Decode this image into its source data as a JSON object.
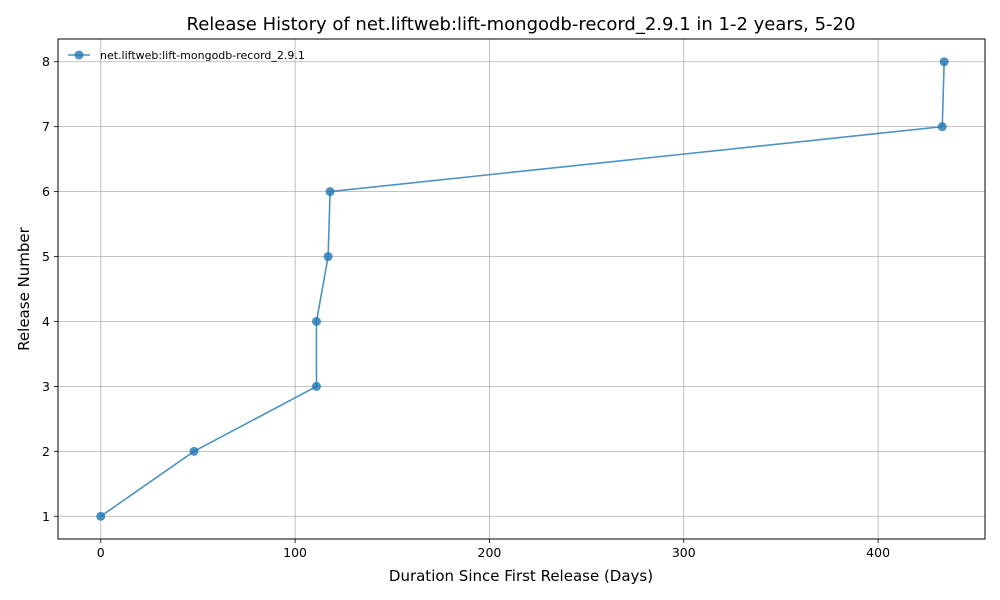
{
  "chart_data": {
    "type": "line",
    "title": "Release History of net.liftweb:lift-mongodb-record_2.9.1 in 1-2 years, 5-20",
    "xlabel": "Duration Since First Release (Days)",
    "ylabel": "Release Number",
    "xlim": [
      -22,
      455
    ],
    "ylim": [
      0.65,
      8.35
    ],
    "xticks": [
      0,
      100,
      200,
      300,
      400
    ],
    "yticks": [
      1,
      2,
      3,
      4,
      5,
      6,
      7,
      8
    ],
    "grid": true,
    "legend_position": "top-left",
    "series": [
      {
        "name": "net.liftweb:lift-mongodb-record_2.9.1",
        "color": "#1f77b4",
        "marker": "circle",
        "x": [
          0,
          48,
          111,
          111,
          117,
          118,
          433,
          434
        ],
        "y": [
          1,
          2,
          3,
          4,
          5,
          6,
          7,
          8
        ]
      }
    ]
  }
}
